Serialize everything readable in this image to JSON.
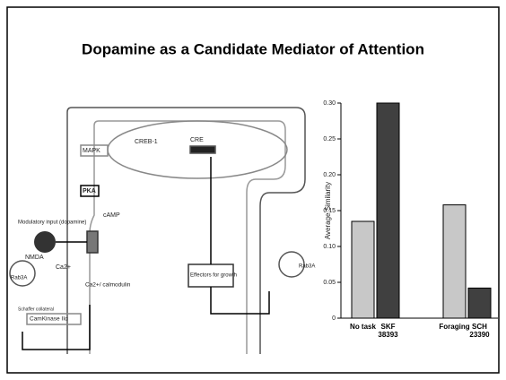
{
  "title": "Dopamine as a Candidate Mediator of Attention",
  "diagram": {
    "labels": [
      "MAPK",
      "CREB-1",
      "CRE",
      "PKA",
      "cAMP",
      "Modulatory input (dopamine)",
      "NMDA",
      "Rab3A",
      "Ca2+",
      "Ca2+/ calmodulin",
      "CamKinase IIα",
      "Schaffer collateral",
      "Effectors for growth",
      "Rab3A"
    ]
  },
  "chart_data": {
    "type": "bar",
    "ylabel": "Average Similarity",
    "categories": [
      "No task",
      "SKF 38393",
      "Foraging",
      "SCH 23390"
    ],
    "values": [
      0.135,
      0.3,
      0.158,
      0.042
    ],
    "colors": [
      "#c8c8c8",
      "#404040",
      "#c8c8c8",
      "#404040"
    ],
    "ylim": [
      0,
      0.3
    ],
    "yticks": [
      0,
      0.05,
      {
        "value": 0.1,
        "label": "0.10"
      },
      0.15,
      {
        "value": 0.2,
        "label": "0.20"
      },
      0.25,
      {
        "value": 0.3,
        "label": "0.30"
      }
    ]
  }
}
